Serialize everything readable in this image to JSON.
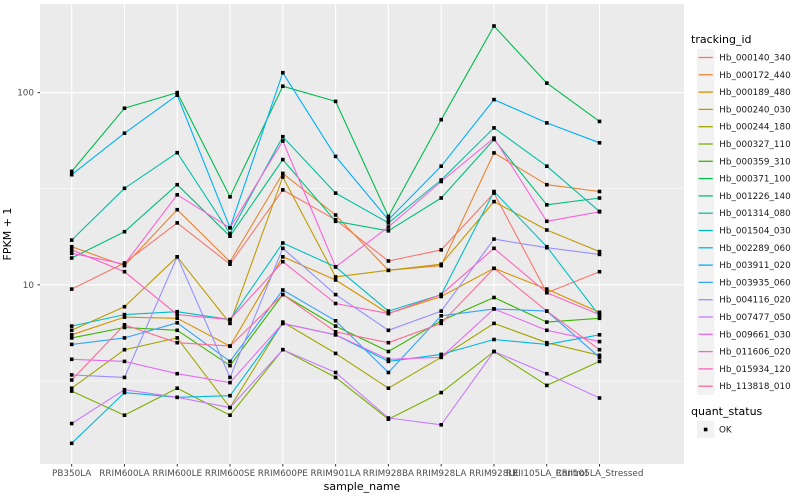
{
  "figure": {
    "background": "#FFFFFF",
    "panel_background": "#EBEBEB",
    "gridline_color": "#FFFFFF",
    "axis_text_color": "#4D4D4D",
    "tick_color": "#333333"
  },
  "chart_data": {
    "type": "line",
    "title": "",
    "xlabel": "sample_name",
    "ylabel": "FPKM + 1",
    "y_scale": "log10",
    "ylim": [
      1.17,
      289
    ],
    "y_ticks": [
      10,
      100
    ],
    "y_tick_labels": [
      "10",
      "100"
    ],
    "y_minor_gridlines": [
      3.162,
      31.62
    ],
    "grid": "on",
    "point_shape": "filled-square",
    "point_color": "#000000",
    "legend_position": "right",
    "categories": [
      "PB350LA",
      "RRIM600LA",
      "RRIM600LE",
      "RRIM600SE",
      "RRIM600PE",
      "RRIM901LA",
      "RRIM928BA",
      "RRIM928LA",
      "RRIM928LE",
      "RRII105LA_Control",
      "RRII105LA_Stressed"
    ],
    "series": [
      {
        "name": "Hb_000140_340",
        "color": "#F8766D",
        "values": [
          9.5,
          13.0,
          21.0,
          12.8,
          31.2,
          21.8,
          13.3,
          15.2,
          30.0,
          9.1,
          11.7
        ]
      },
      {
        "name": "Hb_000172_440",
        "color": "#EA8331",
        "values": [
          15.8,
          12.6,
          24.6,
          13.2,
          38.0,
          23.1,
          11.9,
          12.6,
          48.6,
          33.2,
          30.6
        ]
      },
      {
        "name": "Hb_000189_480",
        "color": "#D89000",
        "values": [
          5.5,
          6.8,
          6.7,
          4.8,
          14.0,
          10.6,
          7.1,
          8.7,
          12.2,
          9.5,
          7.2
        ]
      },
      {
        "name": "Hb_000240_030",
        "color": "#C09B00",
        "values": [
          5.8,
          7.7,
          14.0,
          6.3,
          36.4,
          11.0,
          11.9,
          12.8,
          27.1,
          19.3,
          14.9
        ]
      },
      {
        "name": "Hb_000244_180",
        "color": "#A3A500",
        "values": [
          2.9,
          4.6,
          5.3,
          2.3,
          6.4,
          4.4,
          2.9,
          4.2,
          6.3,
          5.0,
          4.3
        ]
      },
      {
        "name": "Hb_000327_110",
        "color": "#7CAE00",
        "values": [
          2.8,
          2.1,
          2.9,
          2.1,
          4.6,
          3.3,
          2.0,
          2.75,
          4.5,
          3.0,
          4.0
        ]
      },
      {
        "name": "Hb_000359_310",
        "color": "#39B600",
        "values": [
          5.3,
          6.0,
          5.8,
          3.8,
          8.9,
          6.1,
          4.5,
          6.5,
          8.6,
          6.4,
          6.7
        ]
      },
      {
        "name": "Hb_000371_100",
        "color": "#00BB4E",
        "values": [
          38.9,
          83.0,
          100.0,
          28.7,
          108.0,
          90.0,
          22.7,
          72.3,
          222.0,
          112.0,
          70.8
        ]
      },
      {
        "name": "Hb_001226_140",
        "color": "#00BF7D",
        "values": [
          13.8,
          18.9,
          33.2,
          17.9,
          44.8,
          21.4,
          19.1,
          28.3,
          57.0,
          26.1,
          28.3
        ]
      },
      {
        "name": "Hb_001314_080",
        "color": "#00C1A3",
        "values": [
          17.1,
          31.8,
          48.7,
          18.5,
          59.0,
          30.0,
          21.0,
          35.1,
          65.5,
          41.4,
          24.1
        ]
      },
      {
        "name": "Hb_001504_030",
        "color": "#00BFC4",
        "values": [
          6.1,
          7.0,
          7.25,
          6.6,
          16.5,
          12.4,
          7.3,
          8.9,
          30.6,
          15.8,
          6.9
        ]
      },
      {
        "name": "Hb_002289_060",
        "color": "#00BAE0",
        "values": [
          1.5,
          2.75,
          2.6,
          2.65,
          6.3,
          5.5,
          4.0,
          4.35,
          5.2,
          4.9,
          5.5
        ]
      },
      {
        "name": "Hb_003911_020",
        "color": "#00B0F6",
        "values": [
          37.4,
          61.5,
          97.0,
          19.8,
          127.0,
          46.6,
          21.8,
          41.4,
          92.0,
          69.6,
          54.8
        ]
      },
      {
        "name": "Hb_003935_060",
        "color": "#35A2FF",
        "values": [
          4.9,
          5.3,
          6.35,
          4.0,
          9.4,
          6.5,
          3.5,
          6.9,
          7.5,
          7.3,
          4.2
        ]
      },
      {
        "name": "Hb_004116_020",
        "color": "#9590FF",
        "values": [
          3.4,
          3.3,
          14.0,
          3.3,
          15.5,
          8.9,
          5.8,
          7.3,
          17.3,
          15.6,
          14.4
        ]
      },
      {
        "name": "Hb_007477_050",
        "color": "#C77CFF",
        "values": [
          1.9,
          2.85,
          2.6,
          2.3,
          4.6,
          3.5,
          2.03,
          1.87,
          4.5,
          3.45,
          2.58
        ]
      },
      {
        "name": "Hb_009661_030",
        "color": "#E76BF3",
        "values": [
          4.1,
          4.0,
          3.45,
          3.1,
          6.3,
          5.5,
          4.1,
          4.2,
          7.5,
          5.8,
          5.07
        ]
      },
      {
        "name": "Hb_011606_020",
        "color": "#FA62DB",
        "values": [
          14.6,
          12.8,
          29.4,
          19.8,
          56.0,
          12.4,
          20.0,
          34.5,
          58.0,
          21.4,
          24.0
        ]
      },
      {
        "name": "Hb_015934_120",
        "color": "#FF62BC",
        "values": [
          15.2,
          11.7,
          7.0,
          6.6,
          13.2,
          8.0,
          7.1,
          8.9,
          15.5,
          9.1,
          7.0
        ]
      },
      {
        "name": "Hb_113818_010",
        "color": "#FF6A98",
        "values": [
          3.2,
          6.2,
          5.0,
          4.8,
          8.9,
          5.7,
          5.0,
          6.3,
          12.2,
          7.3,
          4.6
        ]
      }
    ],
    "legend": {
      "series_title": "tracking_id",
      "point_title": "quant_status",
      "point_label": "OK",
      "key_fill": "#F2F2F2"
    }
  }
}
